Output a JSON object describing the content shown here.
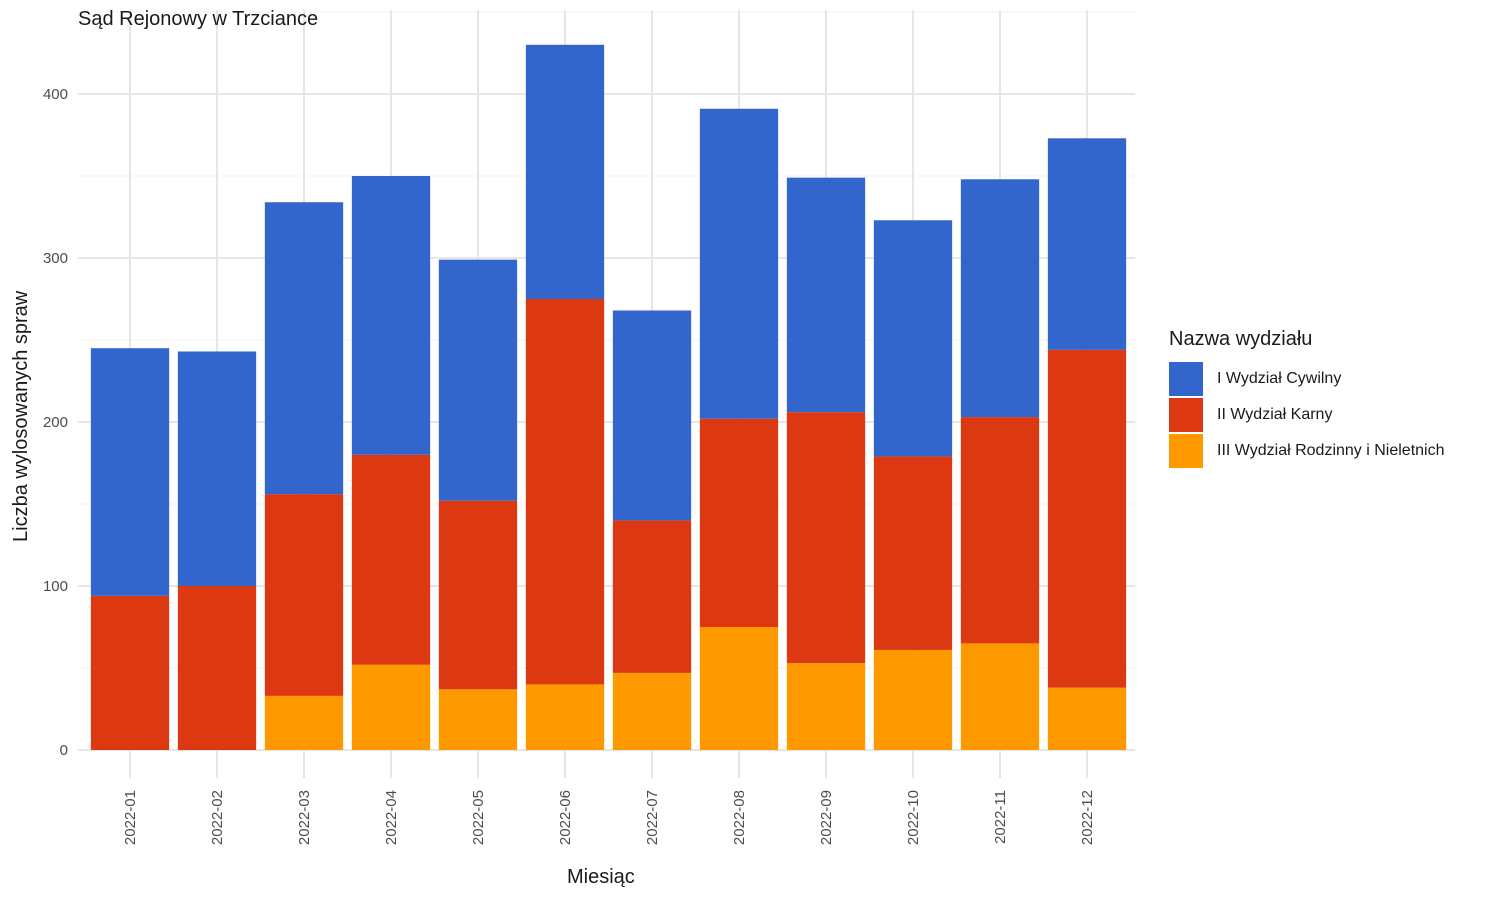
{
  "chart_data": {
    "type": "bar",
    "stacked": true,
    "title": "Sąd Rejonowy w Trzciance",
    "xlabel": "Miesiąc",
    "ylabel": "Liczba wylosowanych spraw",
    "categories": [
      "2022-01",
      "2022-02",
      "2022-03",
      "2022-04",
      "2022-05",
      "2022-06",
      "2022-07",
      "2022-08",
      "2022-09",
      "2022-10",
      "2022-11",
      "2022-12"
    ],
    "ylim": [
      0,
      440
    ],
    "yticks": [
      0,
      100,
      200,
      300,
      400
    ],
    "grid": true,
    "legend": {
      "title": "Nazwa wydziału",
      "placement": "right"
    },
    "series": [
      {
        "name": "III Wydział Rodzinny i Nieletnich",
        "color": "#FF9900",
        "values": [
          0,
          0,
          33,
          52,
          37,
          40,
          47,
          75,
          53,
          61,
          65,
          38
        ]
      },
      {
        "name": "II Wydział Karny",
        "color": "#DC3912",
        "values": [
          94,
          100,
          123,
          128,
          115,
          235,
          93,
          127,
          153,
          118,
          138,
          206
        ]
      },
      {
        "name": "I Wydział Cywilny",
        "color": "#3366CC",
        "values": [
          151,
          143,
          178,
          170,
          147,
          155,
          128,
          189,
          143,
          144,
          145,
          129
        ]
      }
    ]
  }
}
